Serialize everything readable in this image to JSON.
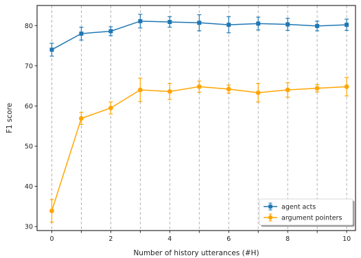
{
  "chart_data": {
    "type": "line",
    "title": "",
    "xlabel": "Number of history utterances (#H)",
    "ylabel": "F1 score",
    "x": [
      0,
      1,
      2,
      3,
      4,
      5,
      6,
      7,
      8,
      9,
      10
    ],
    "xlim": [
      -0.5,
      10.3
    ],
    "ylim": [
      29,
      85
    ],
    "xticks": [
      0,
      2,
      4,
      6,
      8,
      10
    ],
    "yticks": [
      30,
      40,
      50,
      60,
      70,
      80
    ],
    "grid": "vertical dashed at each x",
    "legend_position": "lower-right",
    "series": [
      {
        "name": "agent acts",
        "color": "#1f77b4",
        "marker": "square",
        "values": [
          74.0,
          78.0,
          78.6,
          81.1,
          80.9,
          80.7,
          80.2,
          80.5,
          80.3,
          79.9,
          80.2
        ],
        "errors": [
          1.6,
          1.6,
          1.1,
          1.7,
          1.3,
          2.0,
          2.0,
          1.6,
          1.5,
          1.2,
          1.4
        ]
      },
      {
        "name": "argument pointers",
        "color": "#ffa500",
        "marker": "circle",
        "values": [
          33.9,
          56.9,
          59.5,
          64.0,
          63.6,
          64.8,
          64.2,
          63.3,
          64.0,
          64.4,
          64.8
        ],
        "errors": [
          2.8,
          1.5,
          1.5,
          2.9,
          2.0,
          1.4,
          1.0,
          2.3,
          1.8,
          0.9,
          2.3
        ]
      }
    ]
  }
}
